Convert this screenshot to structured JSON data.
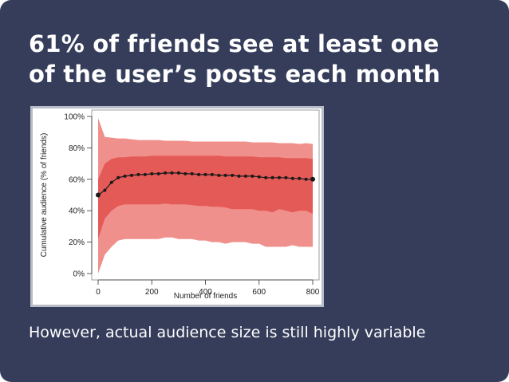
{
  "slide": {
    "title_line1": "61% of friends see at least one",
    "title_line2": "of the user’s posts each month",
    "subtitle": "However, actual audience size is still highly variable",
    "background": "#353d5a"
  },
  "chart_data": {
    "type": "line",
    "xlabel": "Number of friends",
    "ylabel": "Cumulative audience (% of friends)",
    "xlim": [
      0,
      800
    ],
    "ylim": [
      0,
      100
    ],
    "x_ticks": [
      0,
      200,
      400,
      600,
      800
    ],
    "x_tick_labels": [
      "0",
      "200",
      "400",
      "600",
      "800"
    ],
    "y_ticks": [
      0,
      20,
      40,
      60,
      80,
      100
    ],
    "y_tick_labels": [
      "0%",
      "20%",
      "40%",
      "60%",
      "80%",
      "100%"
    ],
    "grid": false,
    "colors": {
      "outer_band": "#f0908c",
      "inner_band": "#e45a57",
      "median_line": "#1a1a1a"
    },
    "x": [
      0,
      25,
      50,
      75,
      100,
      125,
      150,
      175,
      200,
      225,
      250,
      275,
      300,
      325,
      350,
      375,
      400,
      425,
      450,
      475,
      500,
      525,
      550,
      575,
      600,
      625,
      650,
      675,
      700,
      725,
      750,
      775,
      800
    ],
    "outer_upper": [
      99,
      87,
      86.5,
      86,
      86,
      85.5,
      85,
      85,
      85,
      85,
      84.5,
      84.5,
      84.5,
      84.5,
      84,
      84,
      84,
      84,
      84,
      84,
      84,
      84,
      84,
      83.5,
      83.5,
      83.5,
      83.5,
      83,
      83,
      83,
      82.5,
      83,
      82.5
    ],
    "inner_upper": [
      60,
      70,
      73,
      74,
      74,
      74.5,
      74.5,
      74.5,
      75,
      75,
      75,
      75,
      75,
      75,
      75,
      75,
      75,
      75,
      75,
      74.5,
      74.5,
      74.5,
      74.5,
      74.5,
      74,
      74,
      74,
      74,
      73.5,
      73.5,
      73.5,
      73.5,
      73
    ],
    "median": [
      50,
      53,
      58,
      61,
      62,
      62.5,
      63,
      63,
      63.5,
      63.5,
      64,
      64,
      64,
      63.5,
      63.5,
      63,
      63,
      63,
      62.5,
      62.5,
      62.5,
      62,
      62,
      62,
      61.5,
      61,
      61,
      61,
      61,
      60.5,
      60.5,
      60,
      60
    ],
    "inner_lower": [
      22,
      35,
      40,
      43,
      44,
      44,
      44,
      44,
      44,
      44,
      44.5,
      44,
      44,
      44,
      43.5,
      43,
      43,
      42.5,
      42.5,
      42,
      41,
      41,
      41,
      41,
      40,
      40,
      39,
      41,
      40,
      39,
      40,
      40,
      38
    ],
    "outer_lower": [
      0,
      12,
      17,
      21,
      22,
      22,
      22,
      22,
      22,
      22,
      23,
      23,
      22,
      22,
      22,
      21,
      21,
      20,
      20,
      19,
      20,
      20,
      20,
      19,
      19,
      17,
      17,
      17,
      17,
      18,
      17,
      17,
      17
    ]
  }
}
